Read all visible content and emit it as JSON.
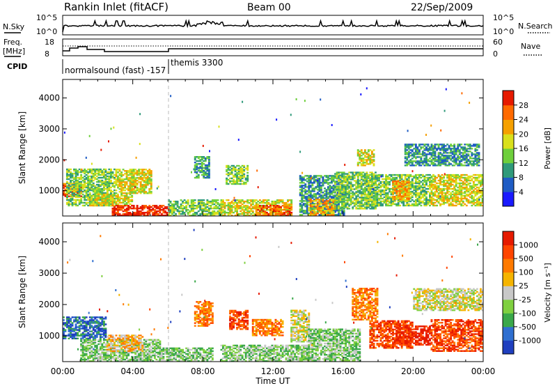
{
  "header": {
    "station": "Rankin Inlet (fitACF)",
    "beam": "Beam 00",
    "date": "22/Sep/2009"
  },
  "noise_panel": {
    "left_label": "N.Sky",
    "right_label": "N.Search",
    "left_ticks": [
      "10^5",
      "10^0"
    ],
    "right_ticks": [
      "10^5",
      "10^0"
    ]
  },
  "freq_panel": {
    "left_label": "Freq.",
    "left_unit": "[MHz]",
    "right_label": "Nave",
    "left_ticks": [
      "18",
      "8"
    ],
    "right_ticks": [
      "60",
      "0"
    ],
    "cpid_label": "CPID",
    "cpid_entries": [
      "normalsound (fast) -157",
      "themis 3300"
    ]
  },
  "time_axis": {
    "ticks": [
      "00:00",
      "04:00",
      "08:00",
      "12:00",
      "16:00",
      "20:00",
      "00:00"
    ],
    "label": "Time UT"
  },
  "chart_data": [
    {
      "type": "heatmap",
      "name": "power",
      "ylabel": "Slant Range [km]",
      "xlabel": "",
      "x_range_hours": [
        0,
        24
      ],
      "ylim": [
        180,
        4600
      ],
      "y_ticks": [
        1000,
        2000,
        3000,
        4000
      ],
      "colorbar": {
        "label": "Power [dB]",
        "ticks": [
          "4",
          "8",
          "12",
          "16",
          "20",
          "24",
          "28"
        ],
        "colors": [
          "#1a1aff",
          "#1f5cc4",
          "#2f9a7a",
          "#6ecf3c",
          "#d9e01c",
          "#f5a000",
          "#ff6a00",
          "#e61a00"
        ]
      },
      "regions": [
        {
          "t": [
            0.0,
            1.0
          ],
          "r": [
            800,
            1250
          ],
          "level": 6
        },
        {
          "t": [
            0.2,
            3.0
          ],
          "r": [
            500,
            1700
          ],
          "level": 3
        },
        {
          "t": [
            1.5,
            4.0
          ],
          "r": [
            500,
            900
          ],
          "level": 4
        },
        {
          "t": [
            2.8,
            6.0
          ],
          "r": [
            180,
            500
          ],
          "level": 7
        },
        {
          "t": [
            3.0,
            5.0
          ],
          "r": [
            900,
            1700
          ],
          "level": 4
        },
        {
          "t": [
            6.0,
            9.0
          ],
          "r": [
            180,
            700
          ],
          "level": 3
        },
        {
          "t": [
            7.5,
            8.3
          ],
          "r": [
            1400,
            2100
          ],
          "level": 2
        },
        {
          "t": [
            9.3,
            10.5
          ],
          "r": [
            1200,
            1800
          ],
          "level": 3
        },
        {
          "t": [
            9.0,
            13.0
          ],
          "r": [
            180,
            700
          ],
          "level": 4
        },
        {
          "t": [
            11.0,
            13.0
          ],
          "r": [
            180,
            500
          ],
          "level": 6
        },
        {
          "t": [
            13.5,
            16.0
          ],
          "r": [
            200,
            1500
          ],
          "level": 2
        },
        {
          "t": [
            14.0,
            15.5
          ],
          "r": [
            200,
            700
          ],
          "level": 5
        },
        {
          "t": [
            15.5,
            18.0
          ],
          "r": [
            400,
            1600
          ],
          "level": 3
        },
        {
          "t": [
            16.8,
            17.8
          ],
          "r": [
            1800,
            2300
          ],
          "level": 4
        },
        {
          "t": [
            17.2,
            21.0
          ],
          "r": [
            500,
            1500
          ],
          "level": 3
        },
        {
          "t": [
            18.8,
            19.8
          ],
          "r": [
            700,
            1300
          ],
          "level": 5
        },
        {
          "t": [
            19.5,
            23.8
          ],
          "r": [
            1800,
            2500
          ],
          "level": 2
        },
        {
          "t": [
            21.0,
            24.0
          ],
          "r": [
            500,
            1500
          ],
          "level": 4
        }
      ]
    },
    {
      "type": "heatmap",
      "name": "velocity",
      "ylabel": "Slant Range [km]",
      "xlabel": "Time UT",
      "x_range_hours": [
        0,
        24
      ],
      "ylim": [
        180,
        4600
      ],
      "y_ticks": [
        1000,
        2000,
        3000,
        4000
      ],
      "colorbar": {
        "label": "Velocity [m s⁻¹]",
        "ticks": [
          "1000",
          "500",
          "100",
          "25",
          "-25",
          "-100",
          "-500",
          "-1000"
        ],
        "colors": [
          "#1f3fbf",
          "#2f6fd0",
          "#3aa84a",
          "#7fd040",
          "#c8c8c8",
          "#f5b400",
          "#ff7a00",
          "#ff4500",
          "#e61a00"
        ]
      },
      "regions": [
        {
          "t": [
            0.0,
            2.5
          ],
          "r": [
            900,
            1600
          ],
          "level": 1
        },
        {
          "t": [
            1.0,
            5.5
          ],
          "r": [
            180,
            900
          ],
          "level": 3
        },
        {
          "t": [
            2.5,
            4.5
          ],
          "r": [
            500,
            1000
          ],
          "level": 5
        },
        {
          "t": [
            5.5,
            8.5
          ],
          "r": [
            180,
            600
          ],
          "level": 3
        },
        {
          "t": [
            7.5,
            8.5
          ],
          "r": [
            1300,
            2100
          ],
          "level": 6
        },
        {
          "t": [
            9.5,
            10.5
          ],
          "r": [
            1200,
            1800
          ],
          "level": 7
        },
        {
          "t": [
            10.8,
            12.5
          ],
          "r": [
            1000,
            1500
          ],
          "level": 6
        },
        {
          "t": [
            9.0,
            14.0
          ],
          "r": [
            180,
            700
          ],
          "level": 3
        },
        {
          "t": [
            13.0,
            14.0
          ],
          "r": [
            800,
            1800
          ],
          "level": 4
        },
        {
          "t": [
            14.0,
            17.0
          ],
          "r": [
            200,
            1200
          ],
          "level": 3
        },
        {
          "t": [
            16.5,
            18.0
          ],
          "r": [
            1500,
            2500
          ],
          "level": 6
        },
        {
          "t": [
            17.5,
            20.0
          ],
          "r": [
            600,
            1500
          ],
          "level": 7
        },
        {
          "t": [
            19.0,
            21.0
          ],
          "r": [
            700,
            1300
          ],
          "level": 8
        },
        {
          "t": [
            20.0,
            24.0
          ],
          "r": [
            1800,
            2500
          ],
          "level": 4
        },
        {
          "t": [
            21.0,
            24.0
          ],
          "r": [
            500,
            1500
          ],
          "level": 7
        }
      ]
    }
  ]
}
